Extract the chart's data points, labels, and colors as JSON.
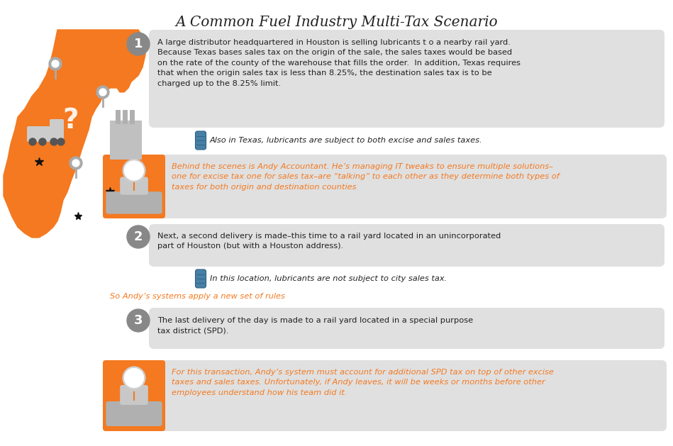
{
  "title": "A Common Fuel Industry Multi-Tax Scenario",
  "bg_color": "#ffffff",
  "orange": "#F47920",
  "gray_circle": "#888888",
  "light_gray_box": "#E0E0E0",
  "dark_text": "#222222",
  "italic_orange": "#F47920",
  "andy_orange_bg": "#F47920",
  "step1_main": "A large distributor headquartered in Houston is selling lubricants t o a nearby rail yard.\nBecause Texas bases sales tax on the origin of the sale, the sales taxes would be based\non the rate of the county of the warehouse that fills the order.  In addition, Texas requires\nthat when the origin sales tax is less than 8.25%, the destination sales tax is to be\ncharged up to the 8.25% limit.",
  "step1_icon_text": "Also in Texas, lubricants are subject to both excise and sales taxes.",
  "andy1_text": "Behind the scenes is Andy Accountant. He’s managing IT tweaks to ensure multiple solutions–\none for excise tax one for sales tax–are “talking” to each other as they determine both types of\ntaxes for both origin and destination counties",
  "step2_main": "Next, a second delivery is made–this time to a rail yard located in an unincorporated\npart of Houston (but with a Houston address).",
  "step2_icon_text": "In this location, lubricants are not subject to city sales tax.",
  "andy2_text": "So Andy’s systems apply a new set of rules",
  "step3_main": "The last delivery of the day is made to a rail yard located in a special purpose\ntax district (SPD).",
  "andy3_text": "For this transaction, Andy’s system must account for additional SPD tax on top of other excise\ntaxes and sales taxes. Unfortunately, if Andy leaves, it will be weeks or months before other\nemployees understand how his team did it."
}
